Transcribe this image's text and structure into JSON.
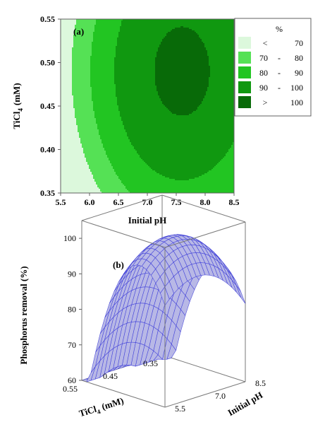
{
  "chart_data": [
    {
      "type": "heatmap",
      "panel_label": "(a)",
      "xlabel": "Initial  pH",
      "ylabel_main": "TiCl",
      "ylabel_sub": "4",
      "ylabel_unit": "(mM)",
      "xlim": [
        5.5,
        8.5
      ],
      "ylim": [
        0.35,
        0.55
      ],
      "x_ticks": [
        "5.5",
        "6.0",
        "6.5",
        "7.0",
        "7.5",
        "8.0",
        "8.5"
      ],
      "y_ticks": [
        "0.35",
        "0.40",
        "0.45",
        "0.50",
        "0.55"
      ],
      "response_model": {
        "description_of_levels": "contour levels of phosphorus removal (%)",
        "levels": [
          70,
          80,
          90,
          100
        ],
        "max_value": 102,
        "max_at": {
          "ph": 7.6,
          "ticl4": 0.49
        }
      },
      "legend": {
        "title": "%",
        "placement": "right",
        "items": [
          {
            "sym": "<",
            "from": "",
            "to": "70",
            "color": "#dcf8dc"
          },
          {
            "sym": "",
            "from": "70",
            "to": "80",
            "color": "#55e155"
          },
          {
            "sym": "",
            "from": "80",
            "to": "90",
            "color": "#22c522"
          },
          {
            "sym": "",
            "from": "90",
            "to": "100",
            "color": "#109810"
          },
          {
            "sym": ">",
            "from": "",
            "to": "100",
            "color": "#086a08"
          }
        ]
      }
    },
    {
      "type": "surface",
      "panel_label": "(b)",
      "zlabel": "Phosphorus  removal (%)",
      "xlabel_main": "TiCl",
      "xlabel_sub": "4",
      "xlabel_unit": "(mM)",
      "ylabel": "Initial pH",
      "z_ticks": [
        "60",
        "70",
        "80",
        "90",
        "100"
      ],
      "zlim": [
        60,
        105
      ],
      "ticl4_ticks": [
        "0.55",
        "0.45",
        "0.35"
      ],
      "ph_ticks": [
        "5.5",
        "7.0",
        "8.5"
      ],
      "surface_color": "#b8b8e6",
      "mesh_color": "#3a3ad8",
      "grid": true
    }
  ]
}
